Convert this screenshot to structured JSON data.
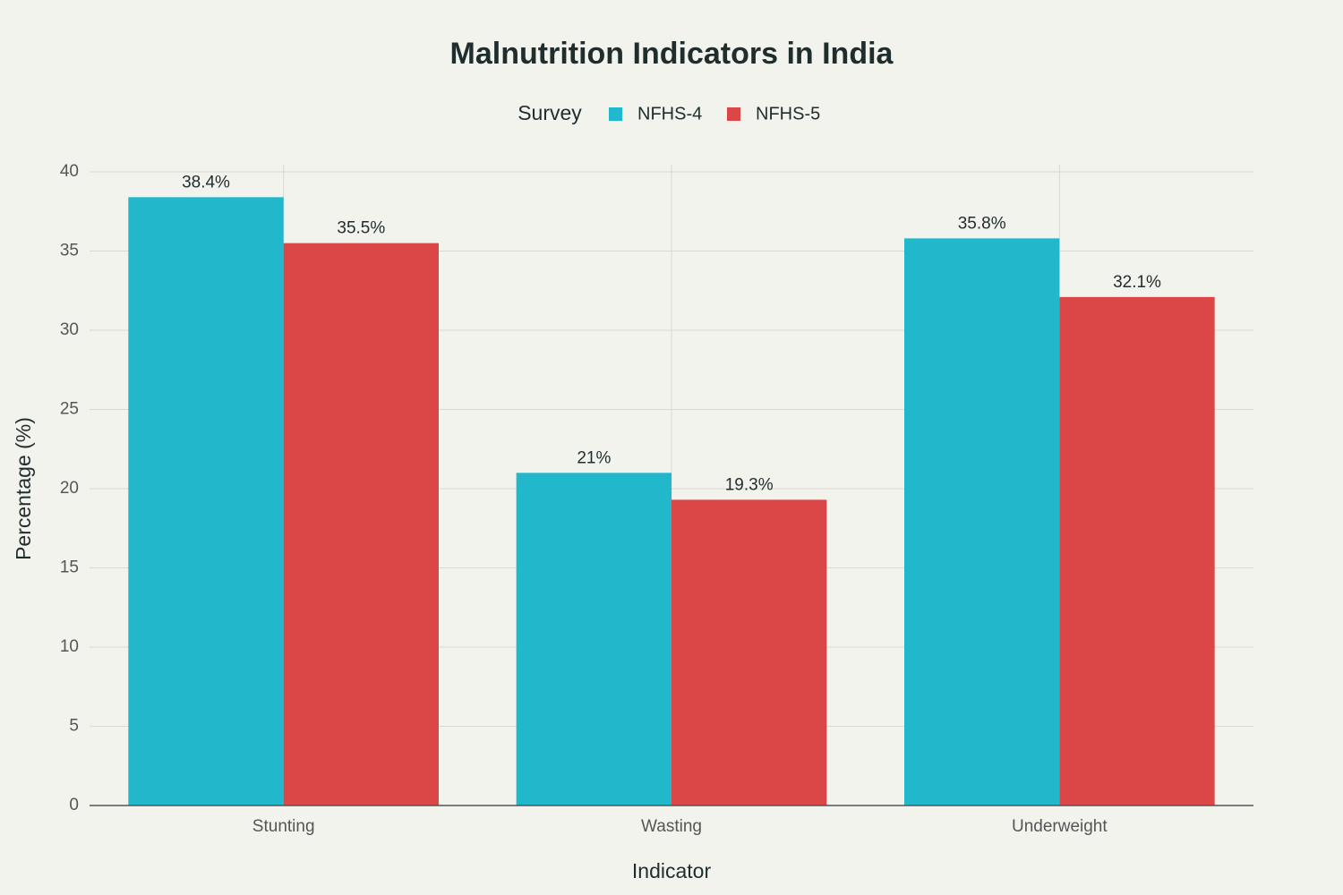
{
  "chart_data": {
    "type": "bar",
    "title": "Malnutrition Indicators in India",
    "x_label": "Indicator",
    "y_label": "Percentage (%)",
    "legend_title": "Survey",
    "categories": [
      "Stunting",
      "Wasting",
      "Underweight"
    ],
    "series": [
      {
        "name": "NFHS-4",
        "color": "#21b8cc",
        "values": [
          38.4,
          21,
          35.8
        ],
        "value_labels": [
          "38.4%",
          "21%",
          "35.8%"
        ]
      },
      {
        "name": "NFHS-5",
        "color": "#db4646",
        "values": [
          35.5,
          19.3,
          32.1
        ],
        "value_labels": [
          "35.5%",
          "19.3%",
          "32.1%"
        ]
      }
    ],
    "ylim": [
      0,
      40
    ],
    "yticks": [
      0,
      5,
      10,
      15,
      20,
      25,
      30,
      35,
      40
    ],
    "grid": true
  }
}
